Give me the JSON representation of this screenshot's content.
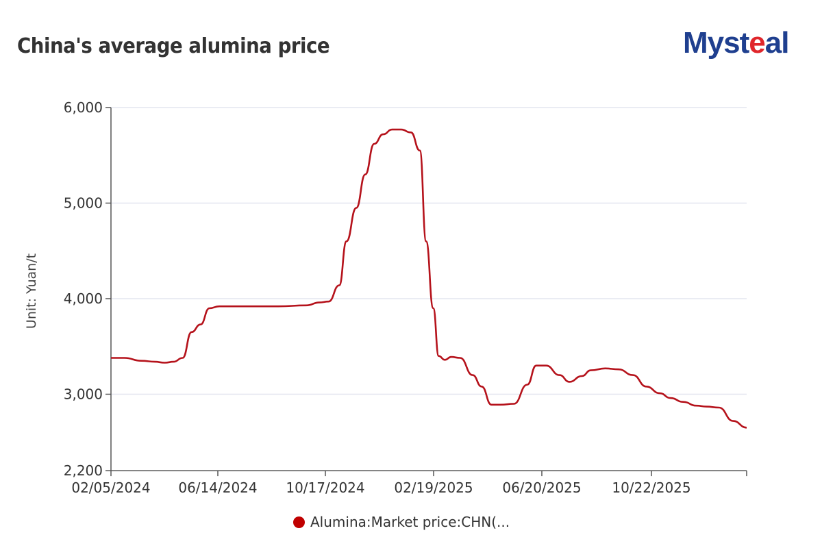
{
  "header": {
    "title": "China's average alumina price",
    "logo_main": "Myst",
    "logo_accent": "e",
    "logo_tail": "al"
  },
  "legend": {
    "label": "Alumina:Market price:CHN(..."
  },
  "chart_data": {
    "type": "line",
    "title": "China's average alumina price",
    "xlabel": "",
    "ylabel": "Unit: Yuan/t",
    "ylim": [
      2200,
      6000
    ],
    "yticks": [
      2200,
      3000,
      4000,
      5000,
      6000
    ],
    "ytick_labels": [
      "2,200",
      "3,000",
      "4,000",
      "5,000",
      "6,000"
    ],
    "xtick_labels": [
      "02/05/2024",
      "06/14/2024",
      "10/17/2024",
      "02/19/2025",
      "06/20/2025",
      "10/22/2025"
    ],
    "grid": true,
    "legend_position": "bottom",
    "series": [
      {
        "name": "Alumina:Market price:CHN(...",
        "color": "#b5121b",
        "x": [
          "2024-02-05",
          "2024-02-20",
          "2024-03-10",
          "2024-03-25",
          "2024-04-05",
          "2024-04-15",
          "2024-04-25",
          "2024-05-05",
          "2024-05-15",
          "2024-05-25",
          "2024-06-05",
          "2024-06-14",
          "2024-07-10",
          "2024-08-10",
          "2024-09-10",
          "2024-09-25",
          "2024-10-05",
          "2024-10-17",
          "2024-10-25",
          "2024-11-05",
          "2024-11-15",
          "2024-11-25",
          "2024-12-05",
          "2024-12-15",
          "2024-12-25",
          "2025-01-05",
          "2025-01-15",
          "2025-01-22",
          "2025-01-30",
          "2025-02-05",
          "2025-02-12",
          "2025-02-19",
          "2025-03-01",
          "2025-03-15",
          "2025-03-25",
          "2025-04-05",
          "2025-04-15",
          "2025-04-30",
          "2025-05-15",
          "2025-05-25",
          "2025-06-05",
          "2025-06-20",
          "2025-07-01",
          "2025-07-15",
          "2025-07-25",
          "2025-08-10",
          "2025-08-25",
          "2025-09-10",
          "2025-09-25",
          "2025-10-10",
          "2025-10-22",
          "2025-11-05",
          "2025-11-20",
          "2025-12-01",
          "2025-12-15",
          "2025-12-31",
          "2026-01-15"
        ],
        "values": [
          3380,
          3380,
          3350,
          3340,
          3330,
          3340,
          3380,
          3650,
          3730,
          3900,
          3920,
          3920,
          3920,
          3920,
          3930,
          3960,
          3970,
          4140,
          4600,
          4950,
          5300,
          5620,
          5720,
          5770,
          5770,
          5740,
          5550,
          4600,
          3900,
          3400,
          3360,
          3390,
          3380,
          3200,
          3080,
          2890,
          2890,
          2900,
          3100,
          3300,
          3300,
          3200,
          3130,
          3190,
          3250,
          3270,
          3260,
          3200,
          3080,
          3010,
          2960,
          2920,
          2880,
          2870,
          2860,
          2720,
          2650
        ]
      }
    ]
  }
}
